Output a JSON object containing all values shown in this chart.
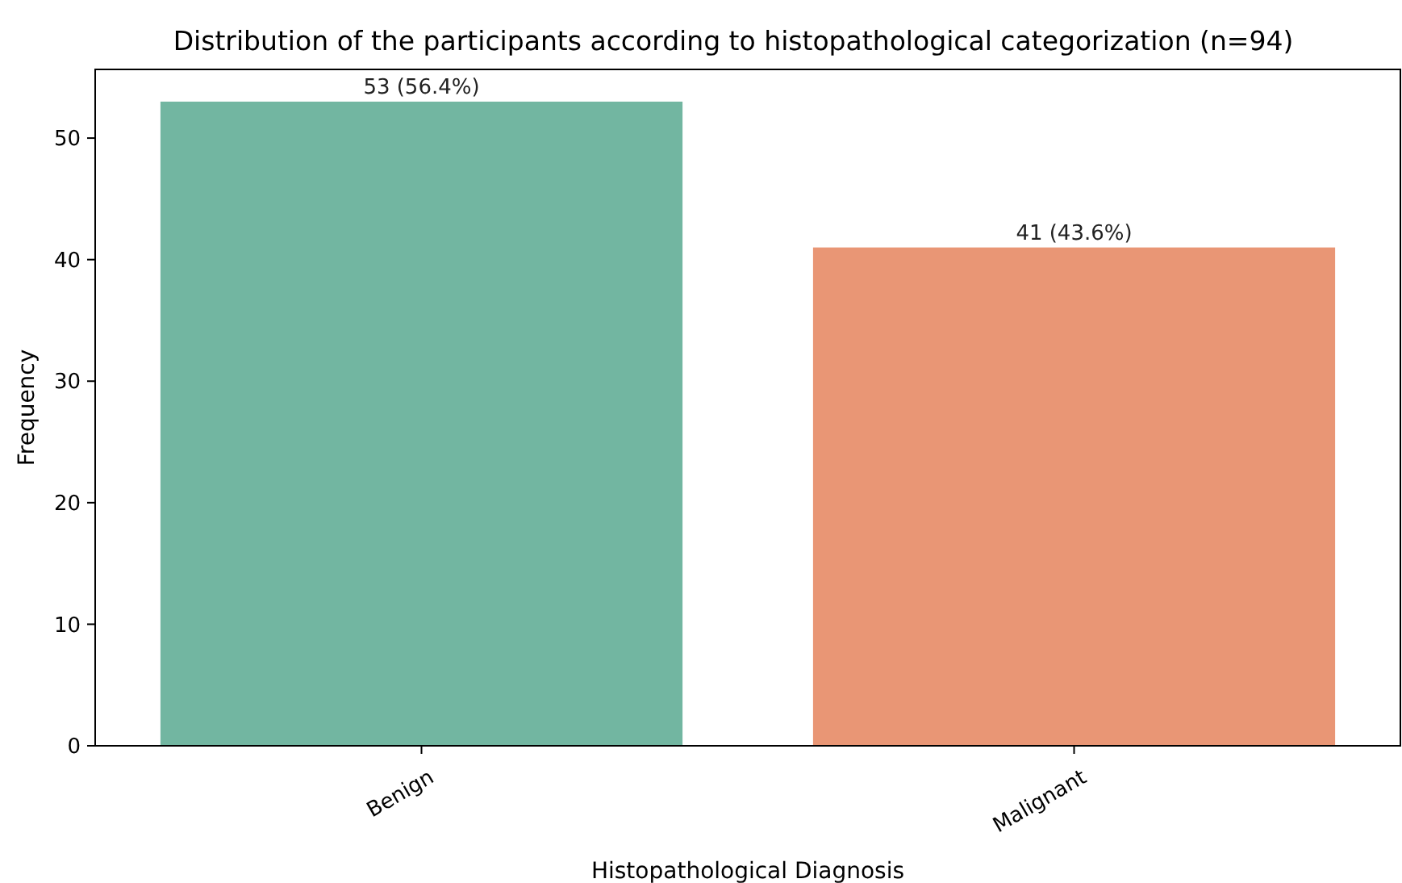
{
  "chart_data": {
    "type": "bar",
    "title": "Distribution of the participants according to histopathological categorization (n=94)",
    "xlabel": "Histopathological Diagnosis",
    "ylabel": "Frequency",
    "categories": [
      "Benign",
      "Malignant"
    ],
    "values": [
      53,
      41
    ],
    "colors": [
      "#72b6a1",
      "#e99675"
    ],
    "value_labels": [
      "53 (56.4%)",
      "41 (43.6%)"
    ],
    "ylim": [
      0,
      55.65
    ],
    "yticks": [
      0,
      10,
      20,
      30,
      40,
      50
    ],
    "grid": false
  }
}
